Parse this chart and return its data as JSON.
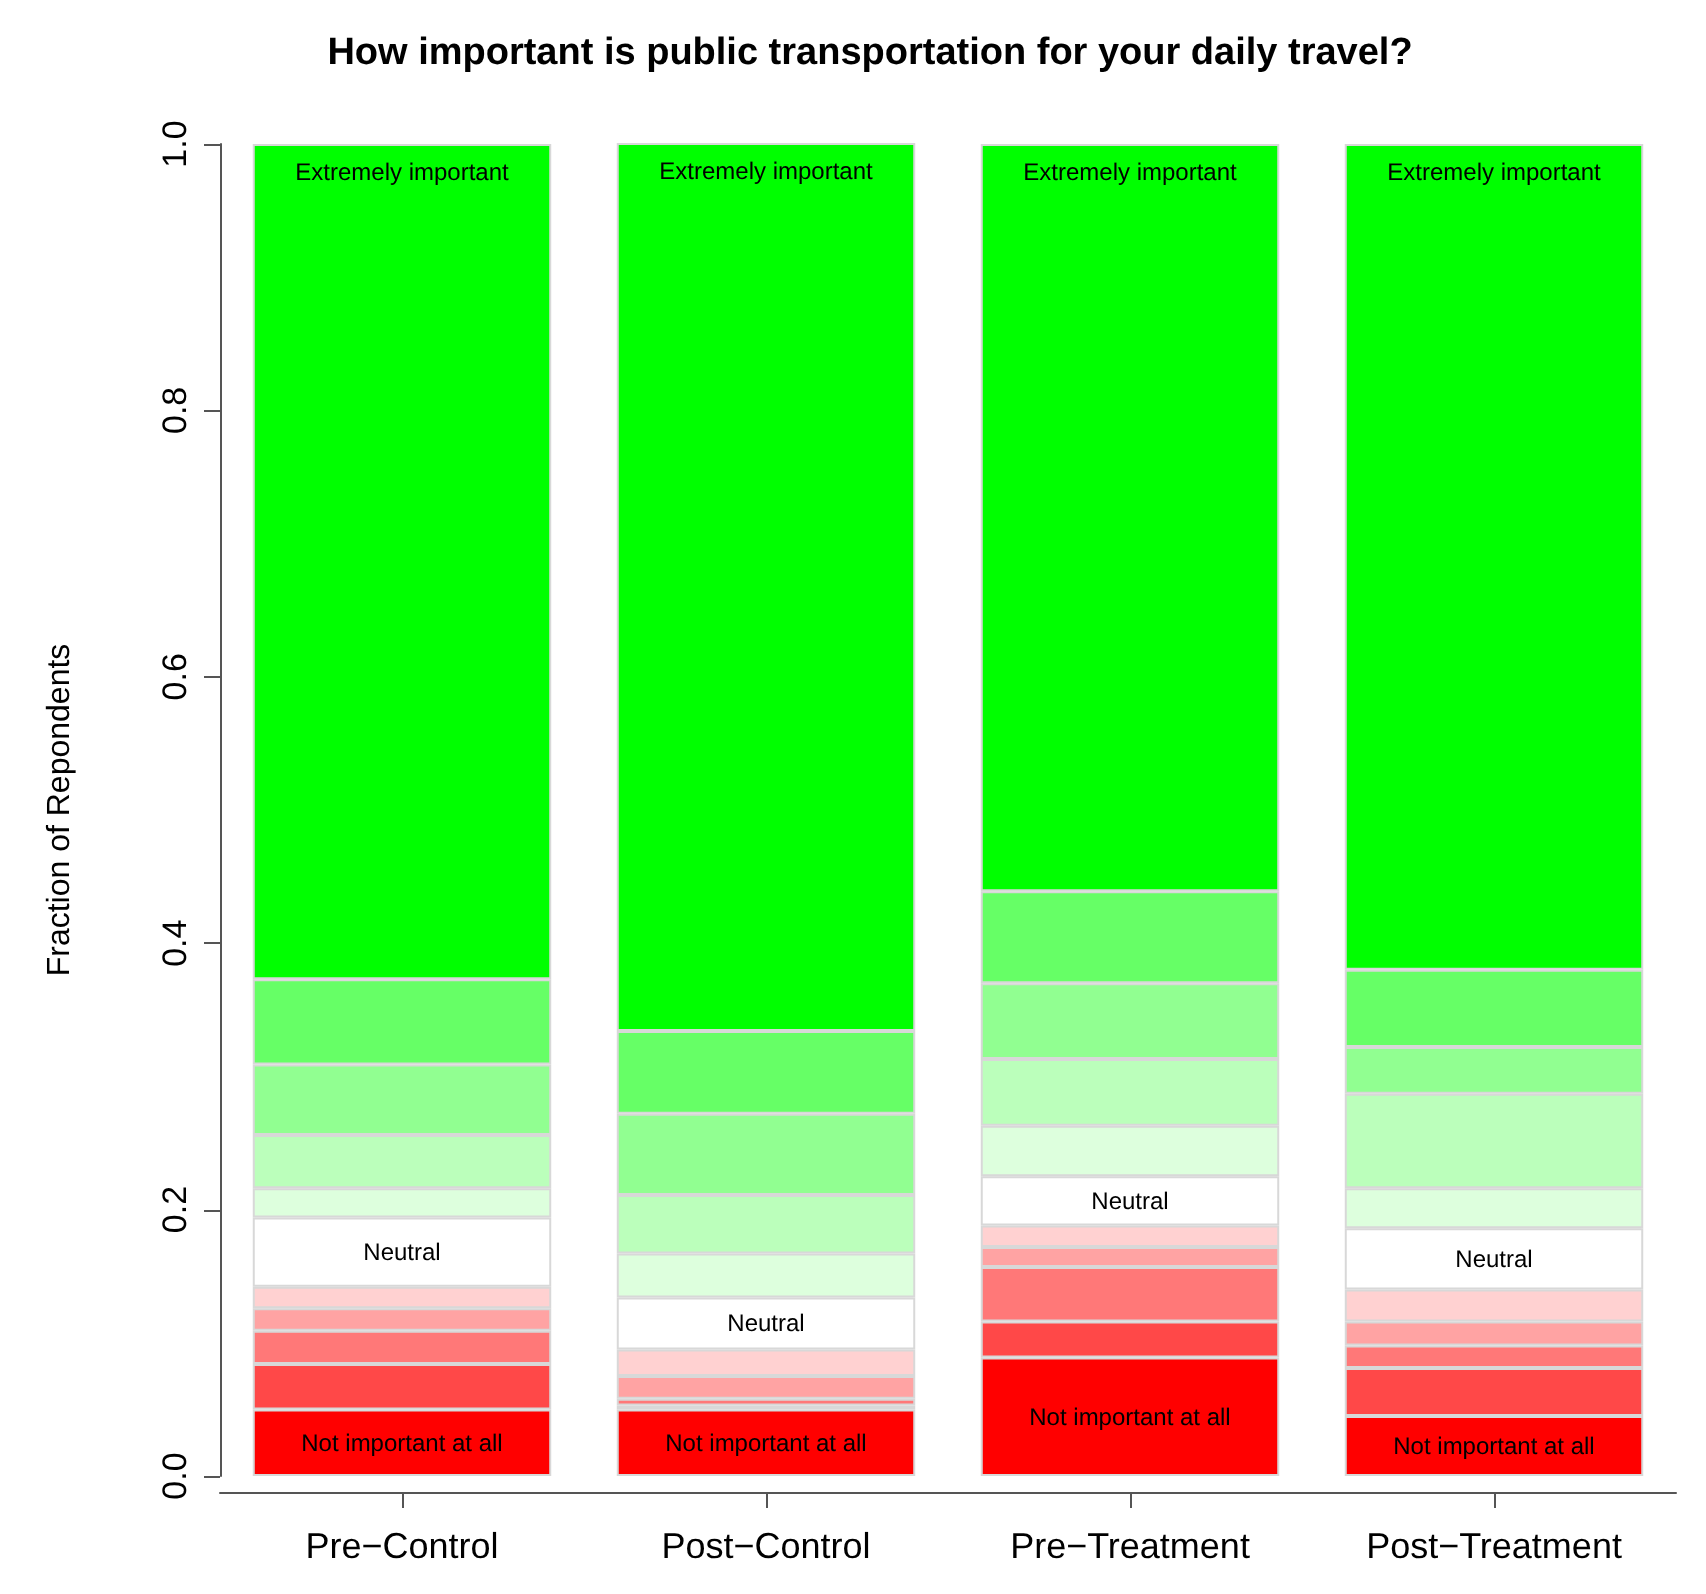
{
  "chart_data": {
    "type": "bar",
    "title": "How important is public transportation for your daily travel?",
    "ylabel": "Fraction of Repondents",
    "categories": [
      "Pre−Control",
      "Post−Control",
      "Pre−Treatment",
      "Post−Treatment"
    ],
    "stacked": true,
    "ylim": [
      0,
      1
    ],
    "yticks": [
      {
        "value": 0,
        "label": "0.0"
      },
      0.2,
      0.4,
      0.6,
      0.8,
      {
        "value": 1,
        "label": "1.0"
      }
    ],
    "grid": false,
    "legend": false,
    "series": [
      {
        "name": "Not important at all",
        "color": "#ff0000",
        "values": [
          0.05,
          0.05,
          0.089,
          0.045
        ]
      },
      {
        "color": "#ff4848",
        "values": [
          0.034,
          0.003,
          0.027,
          0.036
        ]
      },
      {
        "color": "#ff7878",
        "values": [
          0.025,
          0.005,
          0.041,
          0.017
        ]
      },
      {
        "color": "#ffa3a3",
        "values": [
          0.017,
          0.017,
          0.015,
          0.018
        ]
      },
      {
        "color": "#ffd1d1",
        "values": [
          0.016,
          0.02,
          0.016,
          0.024
        ]
      },
      {
        "name": "Neutral",
        "color": "#ffffff",
        "values": [
          0.052,
          0.039,
          0.037,
          0.046
        ]
      },
      {
        "color": "#ddffdd",
        "values": [
          0.022,
          0.033,
          0.038,
          0.03
        ]
      },
      {
        "color": "#bbffbb",
        "values": [
          0.04,
          0.044,
          0.05,
          0.071
        ]
      },
      {
        "color": "#91ff91",
        "values": [
          0.053,
          0.061,
          0.057,
          0.035
        ]
      },
      {
        "color": "#66ff66",
        "values": [
          0.064,
          0.062,
          0.069,
          0.058
        ]
      },
      {
        "name": "Extremely important",
        "color": "#00ff00",
        "values": [
          0.627,
          0.667,
          0.561,
          0.62
        ]
      }
    ]
  }
}
